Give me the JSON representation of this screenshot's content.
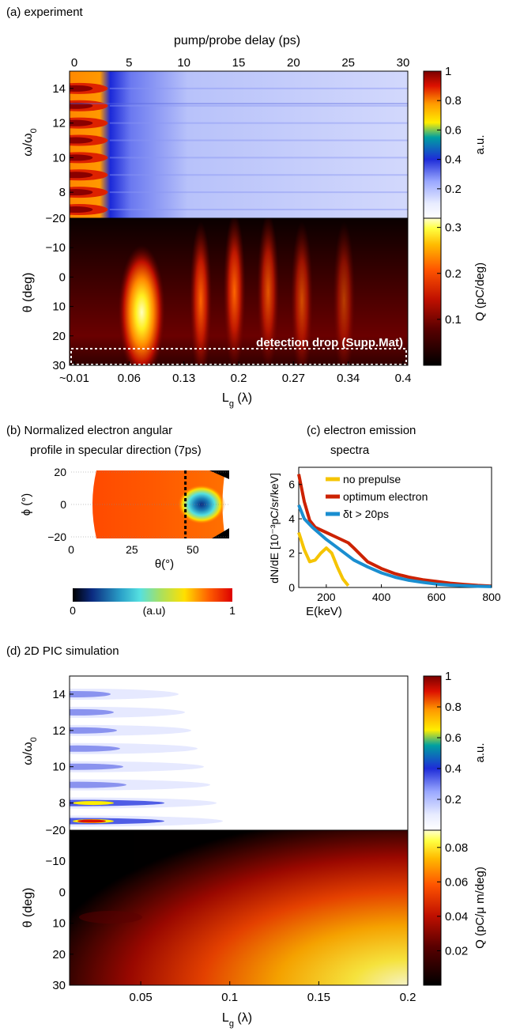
{
  "colors": {
    "spectrum_map": [
      "#ffffff",
      "#e8ecff",
      "#b8c4ff",
      "#2030e0",
      "#ffee00",
      "#ff9900",
      "#dd1100",
      "#7a0000"
    ],
    "charge_map": [
      "#000000",
      "#4a0000",
      "#aa0a00",
      "#ff4400",
      "#ffaa00",
      "#ffee33",
      "#ffffcc"
    ],
    "angular_map": [
      "#000000",
      "#0b2a80",
      "#2aa0c8",
      "#55e0e0",
      "#a8e060",
      "#ffe000",
      "#ff6000",
      "#dd0000"
    ],
    "line_no_prepulse": "#f5c400",
    "line_optimum": "#cc2200",
    "line_delta": "#1a8ed0",
    "detection_box": "#ffffff"
  },
  "panel_a": {
    "label": "(a)  experiment",
    "top_axis_label": "pump/probe delay (ps)",
    "top_ticks": [
      "0",
      "5",
      "10",
      "15",
      "20",
      "25",
      "30"
    ],
    "upper_ylabel": "ω/ω",
    "upper_ylabel_sub": "0",
    "upper_yticks": [
      "14",
      "12",
      "10",
      "8"
    ],
    "lower_ylabel": "θ (deg)",
    "lower_yticks": [
      "−20",
      "−10",
      "0",
      "10",
      "20",
      "30"
    ],
    "bottom_ticks": [
      "~0.01",
      "0.06",
      "0.13",
      "0.2",
      "0.27",
      "0.34",
      "0.4"
    ],
    "bottom_label": "L",
    "bottom_label_sub": "g",
    "bottom_label_unit": " (λ)",
    "annotation": "detection drop (Supp.Mat)",
    "cbar_upper_label": "a.u.",
    "cbar_upper_ticks": [
      "1",
      "0.8",
      "0.6",
      "0.4",
      "0.2"
    ],
    "cbar_lower_label": "Q (pC/deg)",
    "cbar_lower_ticks": [
      "0.3",
      "0.2",
      "0.1"
    ]
  },
  "panel_b": {
    "label_line1": "(b)  Normalized electron angular",
    "label_line2": "profile in specular direction (7ps)",
    "ylabel": "ϕ (°)",
    "yticks": [
      "20",
      "0",
      "−20"
    ],
    "xlabel": "θ(°)",
    "xticks": [
      "0",
      "25",
      "50"
    ],
    "cbar_left": "0",
    "cbar_mid": "(a.u)",
    "cbar_right": "1"
  },
  "panel_c": {
    "label_line1": "(c)  electron emission",
    "label_line2": "spectra",
    "ylabel": "dN/dE [10⁻³pC/sr/keV]",
    "yticks": [
      "0",
      "2",
      "4",
      "6"
    ],
    "xlabel": "E(keV)",
    "xticks": [
      "200",
      "400",
      "600",
      "800"
    ]
  },
  "panel_d": {
    "label": "(d)  2D  PIC simulation",
    "upper_ylabel": "ω/ω",
    "upper_ylabel_sub": "0",
    "upper_yticks": [
      "14",
      "12",
      "10",
      "8"
    ],
    "lower_ylabel": "θ (deg)",
    "lower_yticks": [
      "−20",
      "−10",
      "0",
      "10",
      "20",
      "30"
    ],
    "bottom_ticks": [
      "0.05",
      "0.1",
      "0.15",
      "0.2"
    ],
    "bottom_label": "L",
    "bottom_label_sub": "g",
    "bottom_label_unit": " (λ)",
    "cbar_upper_label": "a.u.",
    "cbar_upper_ticks": [
      "1",
      "0.8",
      "0.6",
      "0.4",
      "0.2"
    ],
    "cbar_lower_label": "Q (pC/μ m/deg)",
    "cbar_lower_ticks": [
      "0.08",
      "0.06",
      "0.04",
      "0.02"
    ]
  },
  "chart_data": [
    {
      "panel": "a-upper",
      "type": "heatmap",
      "xlabel": "pump/probe delay (ps)",
      "xlim": [
        0,
        30
      ],
      "ylabel": "ω/ω0",
      "ylim": [
        6.5,
        15
      ],
      "colorbar": {
        "label": "a.u.",
        "range": [
          0,
          1
        ]
      },
      "harmonic_peaks_y": [
        7,
        8,
        9,
        10,
        11,
        12,
        13,
        14
      ],
      "bright_region_delay_max_ps": 3
    },
    {
      "panel": "a-lower",
      "type": "heatmap",
      "xlabel": "L_g (λ)",
      "xlim": [
        0.01,
        0.4
      ],
      "ylabel": "θ (deg)",
      "ylim": [
        -20,
        30
      ],
      "colorbar": {
        "label": "Q (pC/deg)",
        "range": [
          0,
          0.32
        ]
      },
      "maxima": [
        {
          "Lg": 0.09,
          "theta": 12,
          "Q": 0.32
        },
        {
          "Lg": 0.16,
          "theta": 8,
          "Q": 0.22
        },
        {
          "Lg": 0.2,
          "theta": 5,
          "Q": 0.2
        },
        {
          "Lg": 0.24,
          "theta": 5,
          "Q": 0.17
        },
        {
          "Lg": 0.28,
          "theta": 8,
          "Q": 0.15
        },
        {
          "Lg": 0.33,
          "theta": 8,
          "Q": 0.12
        }
      ],
      "annotation_region": {
        "theta": [
          25,
          29.5
        ],
        "text": "detection drop (Supp.Mat)"
      }
    },
    {
      "panel": "b",
      "type": "heatmap",
      "xlabel": "θ(°)",
      "xlim": [
        0,
        65
      ],
      "ylabel": "ϕ (°)",
      "ylim": [
        -20,
        20
      ],
      "colorbar": {
        "label": "(a.u)",
        "range": [
          0,
          1
        ]
      },
      "specular_line_theta": 47,
      "minimum": {
        "theta": 60,
        "phi": 0,
        "value": 0.2
      }
    },
    {
      "panel": "c",
      "type": "line",
      "xlabel": "E(keV)",
      "xlim": [
        100,
        800
      ],
      "ylabel": "dN/dE [10⁻³pC/sr/keV]",
      "ylim": [
        0,
        7
      ],
      "series": [
        {
          "name": "no prepulse",
          "x": [
            100,
            120,
            140,
            160,
            180,
            200,
            220,
            240,
            260,
            280
          ],
          "y": [
            3.2,
            2.2,
            1.5,
            1.6,
            2.0,
            2.3,
            2.0,
            1.2,
            0.5,
            0.1
          ]
        },
        {
          "name": "optimum electron",
          "x": [
            100,
            120,
            140,
            160,
            200,
            240,
            280,
            300,
            350,
            400,
            450,
            500,
            550,
            600,
            650,
            700,
            750,
            800
          ],
          "y": [
            6.6,
            5.0,
            3.9,
            3.5,
            3.2,
            2.9,
            2.6,
            2.3,
            1.5,
            1.1,
            0.8,
            0.6,
            0.45,
            0.35,
            0.25,
            0.18,
            0.12,
            0.08
          ]
        },
        {
          "name": "δt > 20ps",
          "x": [
            100,
            120,
            150,
            200,
            250,
            300,
            350,
            400,
            450,
            500,
            550,
            600,
            650,
            700,
            750,
            800
          ],
          "y": [
            4.8,
            4.0,
            3.5,
            2.8,
            2.2,
            1.6,
            1.2,
            0.85,
            0.6,
            0.42,
            0.3,
            0.2,
            0.14,
            0.1,
            0.07,
            0.05
          ]
        }
      ]
    },
    {
      "panel": "d-upper",
      "type": "heatmap",
      "xlabel": "L_g (λ)",
      "xlim": [
        0.01,
        0.2
      ],
      "ylabel": "ω/ω0",
      "ylim": [
        6.5,
        15
      ],
      "colorbar": {
        "label": "a.u.",
        "range": [
          0,
          1
        ]
      },
      "harmonic_peaks_y": [
        7,
        8,
        9,
        10,
        11,
        12,
        13,
        14
      ]
    },
    {
      "panel": "d-lower",
      "type": "heatmap",
      "xlabel": "L_g (λ)",
      "xlim": [
        0.01,
        0.2
      ],
      "ylabel": "θ (deg)",
      "ylim": [
        -20,
        30
      ],
      "colorbar": {
        "label": "Q (pC/μ m/deg)",
        "range": [
          0,
          0.09
        ]
      },
      "maximum": {
        "Lg": 0.2,
        "theta": 27,
        "Q": 0.09
      }
    }
  ]
}
